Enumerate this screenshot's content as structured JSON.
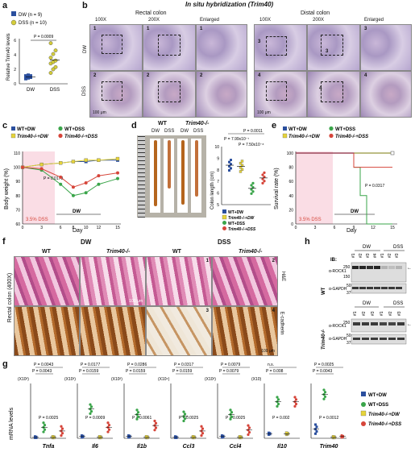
{
  "panels": {
    "a": {
      "label": "a",
      "legend": [
        "DW (n = 9)",
        "DSS (n = 10)"
      ],
      "ylabel": "Relative Trim40 levels",
      "pvalue": "P = 0.0009",
      "xticks": [
        "DW",
        "DSS"
      ],
      "yticks": [
        "0",
        "2",
        "4",
        "6"
      ]
    },
    "b": {
      "label": "b",
      "title": "In situ hybridization (Trim40)",
      "left_region": "Rectal colon",
      "right_region": "Distal colon",
      "cols": [
        "100X",
        "200X",
        "Enlarged",
        "100X",
        "200X",
        "Enlarged"
      ],
      "rows": [
        "DW",
        "DSS"
      ],
      "markers": [
        "1",
        "1",
        "1",
        "3",
        "3",
        "3",
        "2",
        "2",
        "2",
        "4",
        "4",
        "4"
      ],
      "scale": "100 μm"
    },
    "c": {
      "label": "c",
      "legend": [
        "WT+DW",
        "WT+DSS",
        "Trim40-/-+DW",
        "Trim40-/-+DSS"
      ],
      "ylabel": "Body weight (%)",
      "xlabel": "Day",
      "pvalue": "P = 0.0173",
      "dss_label": "3.5% DSS",
      "dw_label": "DW",
      "xticks": [
        "0",
        "3",
        "6",
        "8",
        "10",
        "12",
        "15"
      ],
      "yticks": [
        "60",
        "70",
        "80",
        "90",
        "100",
        "110"
      ]
    },
    "d": {
      "label": "d",
      "photo_groups": [
        "WT",
        "Trim40-/-"
      ],
      "photo_cols": [
        "DW",
        "DSS",
        "DW",
        "DSS"
      ],
      "ylabel": "Colon length (cm)",
      "yticks": [
        "5",
        "6",
        "7",
        "8",
        "9",
        "10"
      ],
      "pvalues": [
        "P = 0.0011",
        "P = 7.99x10⁻⁷",
        "P = 7.50x10⁻⁸"
      ],
      "legend": [
        "WT+DW",
        "Trim40-/-+DW",
        "WT+DSS",
        "Trim40-/-+DSS"
      ]
    },
    "e": {
      "label": "e",
      "legend": [
        "WT+DW",
        "WT+DSS",
        "Trim40-/-+DW",
        "Trim40-/-+DSS"
      ],
      "ylabel": "Survival rate (%)",
      "xlabel": "Day",
      "pvalue": "P = 0.0317",
      "dss_label": "3.5% DSS",
      "dw_label": "DW",
      "xticks": [
        "0",
        "3",
        "6",
        "9",
        "12",
        "15"
      ],
      "yticks": [
        "0",
        "20",
        "40",
        "60",
        "80",
        "100"
      ]
    },
    "f": {
      "label": "f",
      "groups": [
        "DW",
        "DSS"
      ],
      "cols": [
        "WT",
        "Trim40-/-",
        "WT",
        "Trim40-/-"
      ],
      "side": "Rectal colon (400X)",
      "rows": [
        "H&E",
        "E-cadherin"
      ],
      "markers": [
        "1",
        "2",
        "3",
        "4"
      ],
      "scale": "100 μm"
    },
    "h": {
      "label": "h",
      "ib": "IB:",
      "wt_label": "WT",
      "ko_label": "Trim40-/-",
      "groups": [
        "DW",
        "DSS"
      ],
      "lanes": [
        "#1",
        "#2",
        "#3",
        "#4",
        "#1",
        "#2",
        "#3"
      ],
      "lanes_ko": [
        "#1",
        "#2",
        "#3",
        "#1",
        "#2",
        "#3"
      ],
      "bands": [
        "α-ROCK1",
        "α-GAPDH"
      ],
      "mw": [
        "250",
        "150",
        "50",
        "37"
      ]
    },
    "g": {
      "label": "g",
      "ylabel": "mRNA levels",
      "genes": [
        "Tnfa",
        "Il6",
        "Il1b",
        "Ccl3",
        "Ccl4",
        "Il10",
        "Trim40"
      ],
      "scales": [
        "(X10³)",
        "(X10³)",
        "(X10²)",
        "(X10⁴)",
        "(X10³)",
        "(X10)",
        ""
      ],
      "pvals": [
        [
          "P = 0.0043",
          "P = 0.0043",
          "P = 0.0025"
        ],
        [
          "P = 0.0177",
          "P = 0.0159",
          "P = 0.0009"
        ],
        [
          "P = 0.0286",
          "P = 0.0159",
          "P = 0.0061"
        ],
        [
          "P = 0.0317",
          "P = 0.0159",
          "P = 0.0025"
        ],
        [
          "P = 0.0079",
          "P = 0.0079",
          "P = 0.0025"
        ],
        [
          "n.s.",
          "P = 0.008",
          "P = 0.002"
        ],
        [
          "P = 0.0025",
          "P = 0.0043",
          "P = 0.0012"
        ]
      ],
      "ns": "n.s.",
      "legend": [
        "WT+DW",
        "WT+DSS",
        "Trim40-/-+DW",
        "Trim40-/-+DSS"
      ]
    }
  },
  "colors": {
    "blue": "#2b4f9e",
    "green": "#3aa54a",
    "yellow": "#e6d43a",
    "red": "#d6453a",
    "pink": "#f6c7d3"
  },
  "chart_data": [
    {
      "type": "scatter",
      "panel": "a",
      "categories": [
        "DW",
        "DSS"
      ],
      "series": [
        {
          "name": "DW (n = 9)",
          "values": [
            0.7,
            0.8,
            0.9,
            1.0,
            1.0,
            1.1,
            1.1,
            1.2,
            0.9
          ]
        },
        {
          "name": "DSS (n = 10)",
          "values": [
            1.5,
            2.0,
            2.3,
            2.8,
            3.0,
            3.2,
            3.6,
            4.1,
            4.6,
            5.6
          ]
        }
      ],
      "ylim": [
        0,
        6
      ]
    },
    {
      "type": "line",
      "panel": "c",
      "x": [
        0,
        3,
        6,
        8,
        10,
        12,
        15
      ],
      "series": [
        {
          "name": "WT+DW",
          "values": [
            100,
            102,
            103,
            104,
            104,
            105,
            105
          ]
        },
        {
          "name": "WT+DSS",
          "values": [
            100,
            98,
            88,
            80,
            82,
            88,
            92
          ]
        },
        {
          "name": "Trim40-/-+DW",
          "values": [
            100,
            102,
            103,
            104,
            105,
            105,
            106
          ]
        },
        {
          "name": "Trim40-/-+DSS",
          "values": [
            100,
            99,
            93,
            86,
            89,
            94,
            96
          ]
        }
      ],
      "ylim": [
        60,
        110
      ]
    },
    {
      "type": "scatter",
      "panel": "d",
      "categories": [
        "WT+DW",
        "Trim40-/-+DW",
        "WT+DSS",
        "Trim40-/-+DSS"
      ],
      "values": [
        8.4,
        8.3,
        6.4,
        7.3
      ],
      "ylim": [
        5,
        10
      ]
    },
    {
      "type": "line",
      "panel": "e",
      "x": [
        0,
        3,
        6,
        8,
        9,
        10,
        11,
        12,
        15
      ],
      "series": [
        {
          "name": "WT+DW",
          "values": [
            100,
            100,
            100,
            100,
            100,
            100,
            100,
            100,
            100
          ]
        },
        {
          "name": "WT+DSS",
          "values": [
            100,
            100,
            100,
            100,
            80,
            40,
            0,
            0,
            0
          ]
        },
        {
          "name": "Trim40-/-+DW",
          "values": [
            100,
            100,
            100,
            100,
            100,
            100,
            100,
            100,
            100
          ]
        },
        {
          "name": "Trim40-/-+DSS",
          "values": [
            100,
            100,
            100,
            100,
            80,
            80,
            80,
            80,
            80
          ]
        }
      ],
      "ylim": [
        0,
        100
      ]
    },
    {
      "type": "scatter",
      "panel": "g",
      "categories": [
        "Tnfa",
        "Il6",
        "Il1b",
        "Ccl3",
        "Ccl4",
        "Il10",
        "Trim40"
      ],
      "series": [
        {
          "name": "WT+DW",
          "values": [
            0.1,
            0.2,
            0.2,
            0.1,
            0.2,
            0.5,
            1
          ]
        },
        {
          "name": "WT+DSS",
          "values": [
            1.2,
            3.2,
            2.6,
            2.4,
            2.6,
            4,
            4.8
          ]
        },
        {
          "name": "Trim40-/-+DW",
          "values": [
            0.1,
            0.1,
            0.1,
            0.1,
            0.1,
            0.5,
            0.1
          ]
        },
        {
          "name": "Trim40-/-+DSS",
          "values": [
            0.8,
            1.2,
            1.4,
            0.8,
            0.9,
            4,
            0.2
          ]
        }
      ]
    }
  ]
}
